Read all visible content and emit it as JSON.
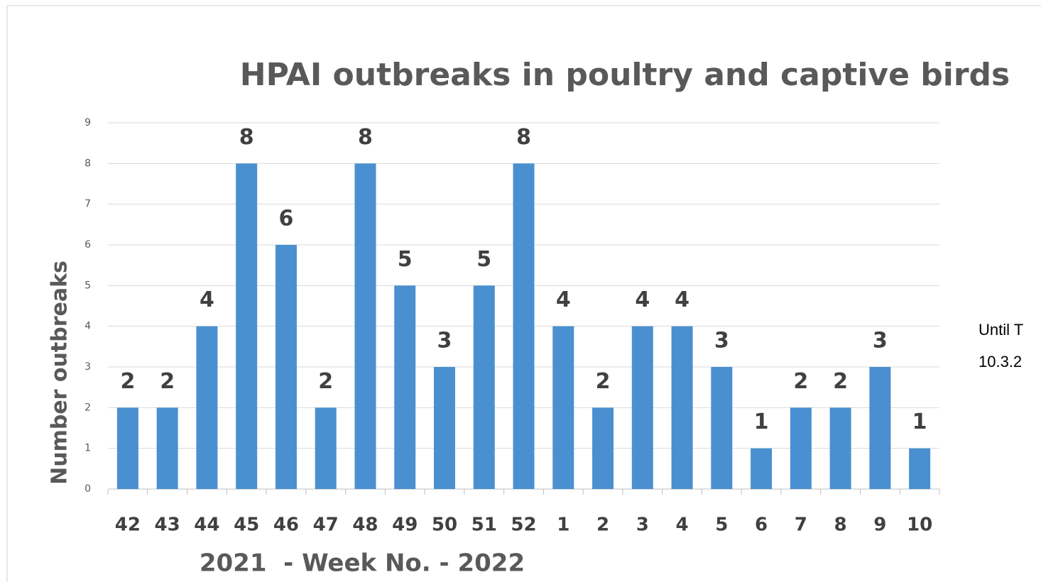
{
  "chart_data": {
    "type": "bar",
    "title": "HPAI outbreaks in poultry and captive birds",
    "ylabel": "Number outbreaks",
    "xlabel": "2021  - Week No. - 2022",
    "annotation": [
      "Until T",
      "10.3.2"
    ],
    "categories": [
      "42",
      "43",
      "44",
      "45",
      "46",
      "47",
      "48",
      "49",
      "50",
      "51",
      "52",
      "1",
      "2",
      "3",
      "4",
      "5",
      "6",
      "7",
      "8",
      "9",
      "10"
    ],
    "values": [
      2,
      2,
      4,
      8,
      6,
      2,
      8,
      5,
      3,
      5,
      8,
      4,
      2,
      4,
      4,
      3,
      1,
      2,
      2,
      3,
      1
    ],
    "color": "#4a90d0",
    "ylim": [
      0,
      9
    ],
    "yticks": [
      0,
      1,
      2,
      3,
      4,
      5,
      6,
      7,
      8,
      9
    ],
    "grid": true
  }
}
